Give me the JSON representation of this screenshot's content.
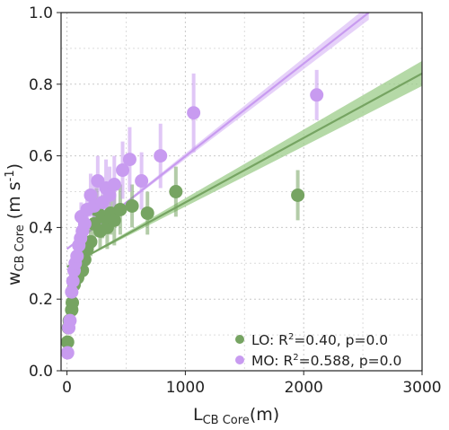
{
  "chart_data": {
    "type": "scatter",
    "xlim": [
      -50,
      3000
    ],
    "ylim": [
      0.0,
      1.0
    ],
    "x_ticks": [
      0,
      1000,
      2000,
      3000
    ],
    "y_ticks": [
      0.0,
      0.2,
      0.4,
      0.6,
      0.8,
      1.0
    ],
    "x_tick_labels": [
      "0",
      "1000",
      "2000",
      "3000"
    ],
    "y_tick_labels": [
      "0.0",
      "0.2",
      "0.4",
      "0.6",
      "0.8",
      "1.0"
    ],
    "grid": true,
    "legend_position": "lower-right",
    "xlabel": {
      "main": "L",
      "sub": "CB Core",
      "unit": "(m)"
    },
    "ylabel": {
      "main": "w",
      "sub": "CB Core",
      "unit_prefix": " (m s",
      "unit_sup": "-1",
      "unit_suffix": ")"
    },
    "series": [
      {
        "name": "LO",
        "legend": {
          "prefix": "LO: R",
          "sup": "2",
          "suffix": "=0.40, p=0.0"
        },
        "color": "#76a462",
        "band_color": "#9ccc8a",
        "fit": {
          "x0": 0,
          "y0": 0.29,
          "x1": 3000,
          "y1": 0.83,
          "band": [
            0.0,
            0.035
          ]
        },
        "points": [
          {
            "x": 5,
            "y": 0.08,
            "e": 0
          },
          {
            "x": 12,
            "y": 0.12,
            "e": 0
          },
          {
            "x": 20,
            "y": 0.14,
            "e": 0
          },
          {
            "x": 40,
            "y": 0.17,
            "e": 0.01
          },
          {
            "x": 45,
            "y": 0.19,
            "e": 0.01
          },
          {
            "x": 60,
            "y": 0.24,
            "e": 0.01
          },
          {
            "x": 75,
            "y": 0.27,
            "e": 0.01
          },
          {
            "x": 90,
            "y": 0.26,
            "e": 0.02
          },
          {
            "x": 110,
            "y": 0.3,
            "e": 0.02
          },
          {
            "x": 130,
            "y": 0.28,
            "e": 0.02
          },
          {
            "x": 150,
            "y": 0.31,
            "e": 0.03
          },
          {
            "x": 170,
            "y": 0.34,
            "e": 0.03
          },
          {
            "x": 200,
            "y": 0.36,
            "e": 0.04
          },
          {
            "x": 230,
            "y": 0.41,
            "e": 0.05
          },
          {
            "x": 250,
            "y": 0.45,
            "e": 0.06
          },
          {
            "x": 280,
            "y": 0.39,
            "e": 0.05
          },
          {
            "x": 300,
            "y": 0.43,
            "e": 0.06
          },
          {
            "x": 340,
            "y": 0.4,
            "e": 0.06
          },
          {
            "x": 370,
            "y": 0.44,
            "e": 0.06
          },
          {
            "x": 400,
            "y": 0.42,
            "e": 0.07
          },
          {
            "x": 450,
            "y": 0.45,
            "e": 0.07
          },
          {
            "x": 550,
            "y": 0.46,
            "e": 0.06
          },
          {
            "x": 680,
            "y": 0.44,
            "e": 0.06
          },
          {
            "x": 920,
            "y": 0.5,
            "e": 0.07
          },
          {
            "x": 1950,
            "y": 0.49,
            "e": 0.07
          }
        ]
      },
      {
        "name": "MO",
        "legend": {
          "prefix": "MO: R",
          "sup": "2",
          "suffix": "=0.588, p=0.0"
        },
        "color": "#c89bf0",
        "band_color": "#ddc2f7",
        "fit": {
          "x0": 0,
          "y0": 0.34,
          "x1": 2550,
          "y1": 1.0,
          "band": [
            0.0,
            0.02
          ]
        },
        "points": [
          {
            "x": 5,
            "y": 0.05,
            "e": 0
          },
          {
            "x": 15,
            "y": 0.12,
            "e": 0.01
          },
          {
            "x": 25,
            "y": 0.14,
            "e": 0.01
          },
          {
            "x": 40,
            "y": 0.22,
            "e": 0.01
          },
          {
            "x": 50,
            "y": 0.25,
            "e": 0.01
          },
          {
            "x": 60,
            "y": 0.28,
            "e": 0.02
          },
          {
            "x": 70,
            "y": 0.3,
            "e": 0.02
          },
          {
            "x": 85,
            "y": 0.32,
            "e": 0.02
          },
          {
            "x": 100,
            "y": 0.35,
            "e": 0.03
          },
          {
            "x": 115,
            "y": 0.37,
            "e": 0.03
          },
          {
            "x": 130,
            "y": 0.39,
            "e": 0.03
          },
          {
            "x": 120,
            "y": 0.43,
            "e": 0.04
          },
          {
            "x": 150,
            "y": 0.41,
            "e": 0.04
          },
          {
            "x": 170,
            "y": 0.45,
            "e": 0.05
          },
          {
            "x": 200,
            "y": 0.49,
            "e": 0.06
          },
          {
            "x": 230,
            "y": 0.46,
            "e": 0.06
          },
          {
            "x": 260,
            "y": 0.53,
            "e": 0.07
          },
          {
            "x": 300,
            "y": 0.47,
            "e": 0.07
          },
          {
            "x": 330,
            "y": 0.51,
            "e": 0.08
          },
          {
            "x": 360,
            "y": 0.49,
            "e": 0.08
          },
          {
            "x": 400,
            "y": 0.52,
            "e": 0.08
          },
          {
            "x": 470,
            "y": 0.56,
            "e": 0.08
          },
          {
            "x": 530,
            "y": 0.59,
            "e": 0.09
          },
          {
            "x": 630,
            "y": 0.53,
            "e": 0.08
          },
          {
            "x": 790,
            "y": 0.6,
            "e": 0.09
          },
          {
            "x": 1070,
            "y": 0.72,
            "e": 0.11
          },
          {
            "x": 2110,
            "y": 0.77,
            "e": 0.07
          }
        ]
      }
    ]
  }
}
